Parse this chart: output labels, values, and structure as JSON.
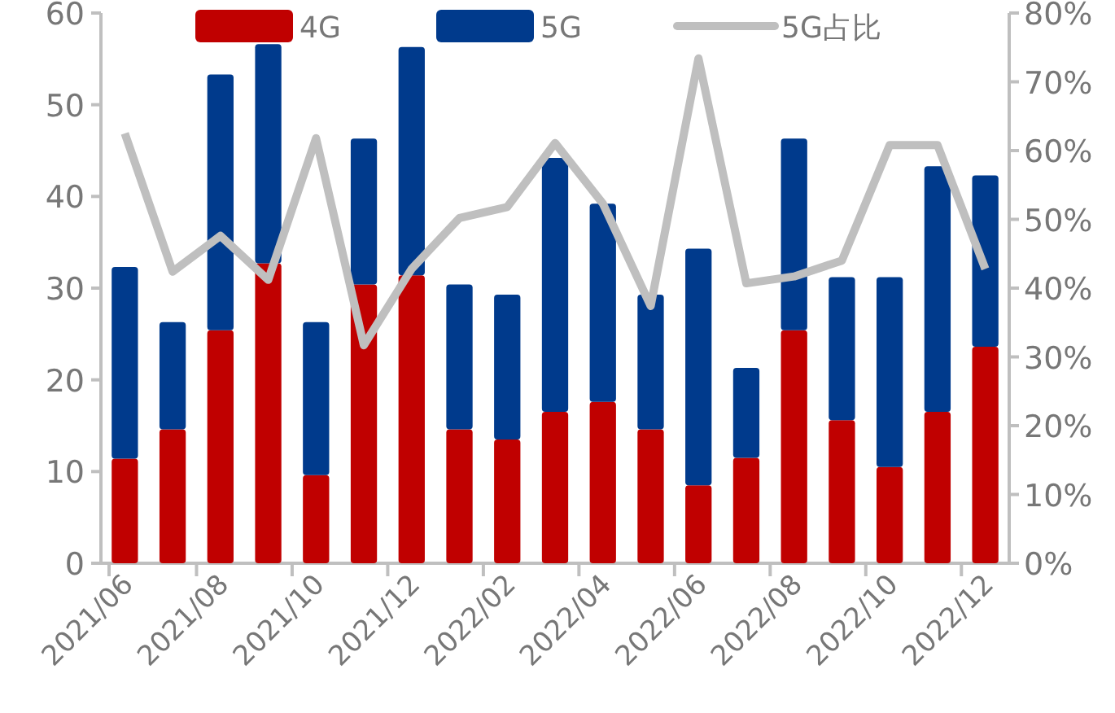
{
  "chart_data": {
    "type": "bar",
    "stacked": true,
    "legend": "top",
    "grid": false,
    "categories": [
      "2021/06",
      null,
      "2021/08",
      null,
      "2021/10",
      null,
      "2021/12",
      null,
      "2022/02",
      null,
      "2022/04",
      null,
      "2022/06",
      null,
      "2022/08",
      null,
      "2022/10",
      null,
      "2022/12"
    ],
    "series": [
      {
        "name": "4G",
        "color": "#c00000",
        "values": [
          11.4,
          14.6,
          25.4,
          32.7,
          9.6,
          30.4,
          31.4,
          14.6,
          13.5,
          16.5,
          17.6,
          14.6,
          8.5,
          11.5,
          25.4,
          15.6,
          10.5,
          16.5,
          23.6
        ]
      },
      {
        "name": "5G",
        "color": "#003a8c",
        "values": [
          20.9,
          11.7,
          27.9,
          23.9,
          16.7,
          15.9,
          24.9,
          15.8,
          15.8,
          27.7,
          21.6,
          14.7,
          25.8,
          9.8,
          20.9,
          15.6,
          20.7,
          26.8,
          18.7
        ]
      },
      {
        "name": "5G占比",
        "type": "line",
        "axis": "y2",
        "color": "#bfbfbf",
        "marker": "none",
        "line_style": "solid",
        "values": [
          62.5,
          42.4,
          47.6,
          41.2,
          61.8,
          31.7,
          42.8,
          50.2,
          51.8,
          61.1,
          52.3,
          37.4,
          73.4,
          40.7,
          41.7,
          44,
          60.8,
          60.8,
          42.8
        ]
      }
    ],
    "ylim": [
      0,
      60
    ],
    "yticks": [
      0,
      10,
      20,
      30,
      40,
      50,
      60
    ],
    "y2lim": [
      0,
      80
    ],
    "y2ticks": [
      {
        "value": 0,
        "label": "0%"
      },
      {
        "value": 10,
        "label": "10%"
      },
      {
        "value": 20,
        "label": "20%"
      },
      {
        "value": 30,
        "label": "30%"
      },
      {
        "value": 40,
        "label": "40%"
      },
      {
        "value": 50,
        "label": "50%"
      },
      {
        "value": 60,
        "label": "60%"
      },
      {
        "value": 70,
        "label": "70%"
      },
      {
        "value": 80,
        "label": "80%"
      }
    ]
  }
}
